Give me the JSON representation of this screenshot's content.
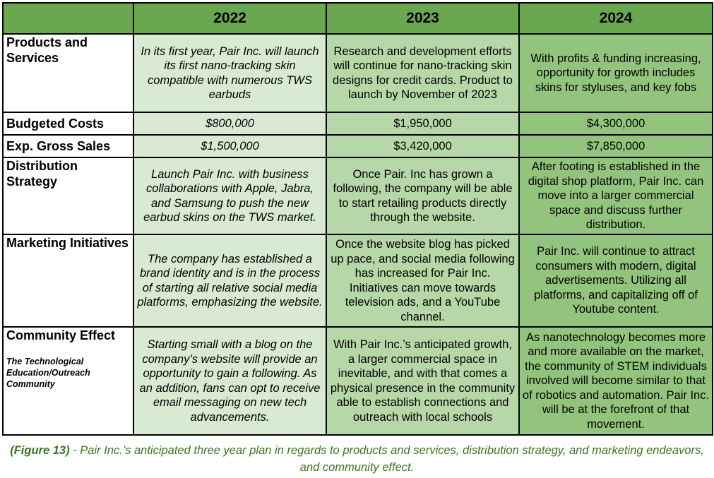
{
  "colors": {
    "header": "#6aa84f",
    "col_2022": "#d9ead3",
    "col_2023": "#b6d7a8",
    "col_2024": "#93c47d",
    "caption": "#38761d"
  },
  "table": {
    "headers": [
      "",
      "2022",
      "2023",
      "2024"
    ],
    "rows": [
      {
        "label": "Products and Services",
        "cells": [
          "In its first year, Pair Inc. will launch its first nano-tracking skin compatible with numerous TWS earbuds",
          "Research and development efforts will continue for nano-tracking skin designs for credit cards. Product to launch by November of 2023",
          "With profits & funding increasing, opportunity for growth includes skins for styluses, and key fobs"
        ]
      },
      {
        "label": "Budgeted Costs",
        "cells": [
          "$800,000",
          "$1,950,000",
          "$4,300,000"
        ]
      },
      {
        "label": "Exp. Gross Sales",
        "cells": [
          "$1,500,000",
          "$3,420,000",
          "$7,850,000"
        ]
      },
      {
        "label": "Distribution Strategy",
        "cells": [
          "Launch Pair Inc. with business collaborations with Apple, Jabra, and Samsung to push the new earbud skins on the TWS market.",
          "Once Pair. Inc has grown a following, the company will be able to start retailing products directly through the website.",
          "After footing is established in the digital shop platform, Pair Inc. can move into a larger commercial space and discuss further distribution."
        ]
      },
      {
        "label": "Marketing Initiatives",
        "cells": [
          "The company has established a brand identity and is in the process of starting all relative social media platforms, emphasizing the website.",
          "Once the website blog has picked up pace, and social media following has increased for Pair Inc. Initiatives can move towards television ads, and a YouTube channel.",
          "Pair Inc. will continue to attract consumers with modern, digital advertisements. Utilizing all platforms, and capitalizing off of Youtube content."
        ]
      },
      {
        "label": "Community Effect",
        "sublabel": "The Technological Education/Outreach Community",
        "cells": [
          "Starting small with a blog on the company’s website will provide an opportunity to gain a following. As an addition, fans can opt to receive email messaging on new tech advancements.",
          "With Pair Inc.’s anticipated growth, a larger commercial space in inevitable, and with that comes a physical presence in the community able to establish connections and outreach with local schools",
          "As nanotechnology becomes more and more available on the market, the community of STEM individuals involved will become similar to that of robotics and automation. Pair Inc. will be at the forefront of that movement."
        ]
      }
    ]
  },
  "caption": {
    "figure": "(Figure 13)",
    "text": " - Pair Inc.’s anticipated three year plan in regards to products and services, distribution strategy, and marketing endeavors, and community effect."
  }
}
